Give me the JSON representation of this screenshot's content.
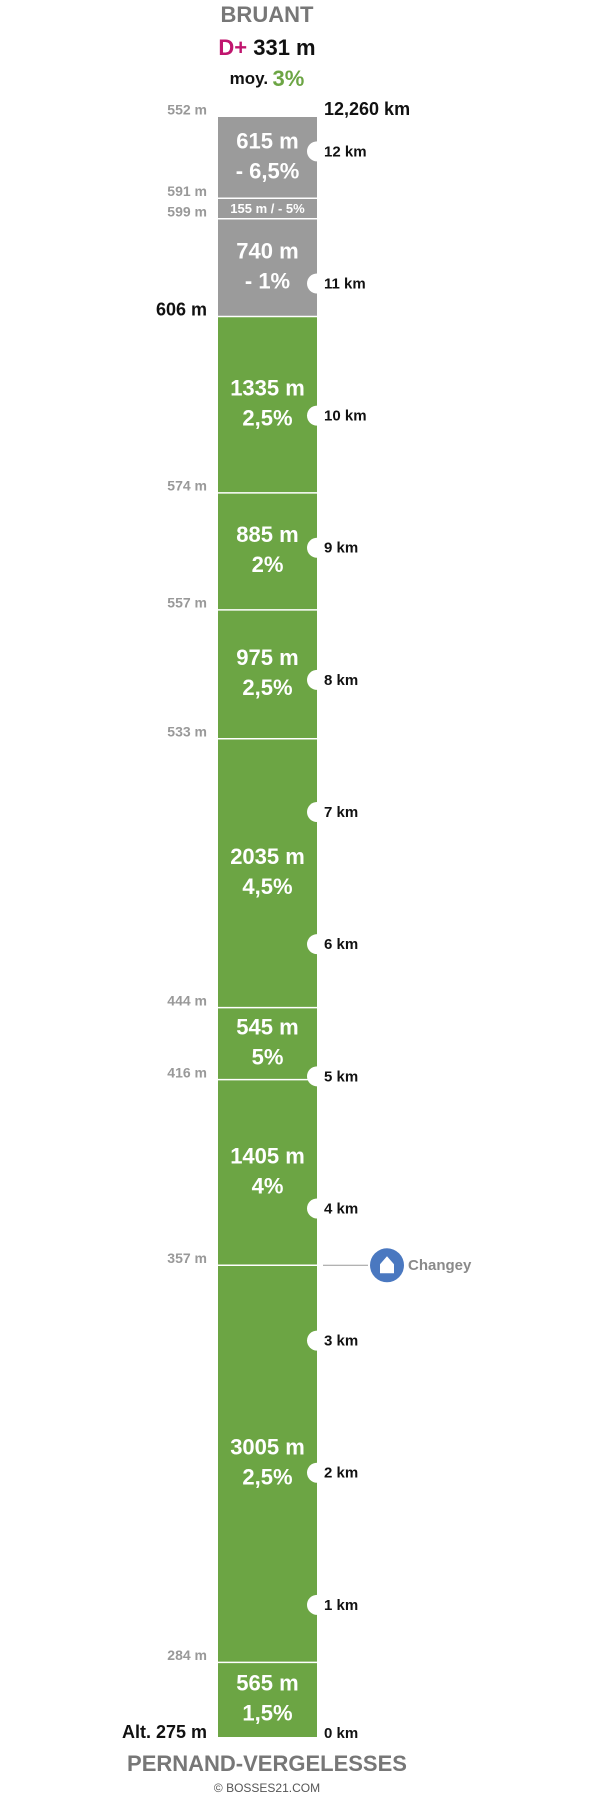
{
  "header": {
    "title": "BRUANT",
    "gain_label": "D+",
    "gain": "331 m",
    "average_label": "moy.",
    "average": "3%"
  },
  "summit_distance": "12,260 km",
  "segments": [
    {
      "length": "615 m",
      "grade": "- 6,5%",
      "color": "#9b9b9b"
    },
    {
      "label": "155 m / - 5%",
      "color": "#9b9b9b"
    },
    {
      "length": "740 m",
      "grade": "- 1%",
      "color": "#9b9b9b"
    },
    {
      "length": "1335 m",
      "grade": "2,5%",
      "color": "#6ca544"
    },
    {
      "length": "885 m",
      "grade": "2%",
      "color": "#6ca544"
    },
    {
      "length": "975 m",
      "grade": "2,5%",
      "color": "#6ca544"
    },
    {
      "length": "2035 m",
      "grade": "4,5%",
      "color": "#6ca544"
    },
    {
      "length": "545 m",
      "grade": "5%",
      "color": "#6ca544"
    },
    {
      "length": "1405 m",
      "grade": "4%",
      "color": "#6ca544"
    },
    {
      "length": "3005 m",
      "grade": "2,5%",
      "color": "#6ca544"
    },
    {
      "length": "565 m",
      "grade": "1,5%",
      "color": "#6ca544"
    }
  ],
  "altitudes": [
    {
      "label": "552 m"
    },
    {
      "label": "591 m"
    },
    {
      "label": "599 m"
    },
    {
      "label": "606 m",
      "style": "bold"
    },
    {
      "label": "574 m"
    },
    {
      "label": "557 m"
    },
    {
      "label": "533 m"
    },
    {
      "label": "444 m"
    },
    {
      "label": "416 m"
    },
    {
      "label": "357 m"
    },
    {
      "label": "284 m"
    },
    {
      "label": "Alt. 275 m",
      "style": "bold"
    }
  ],
  "km_markers": [
    "12 km",
    "11 km",
    "10 km",
    "9 km",
    "8 km",
    "7 km",
    "6 km",
    "5 km",
    "4 km",
    "3 km",
    "2 km",
    "1 km",
    "0 km"
  ],
  "village": {
    "name": "Changey",
    "altitude_index": 9
  },
  "footer": {
    "start": "PERNAND-VERGELESSES",
    "credit": "© BOSSES21.COM"
  }
}
